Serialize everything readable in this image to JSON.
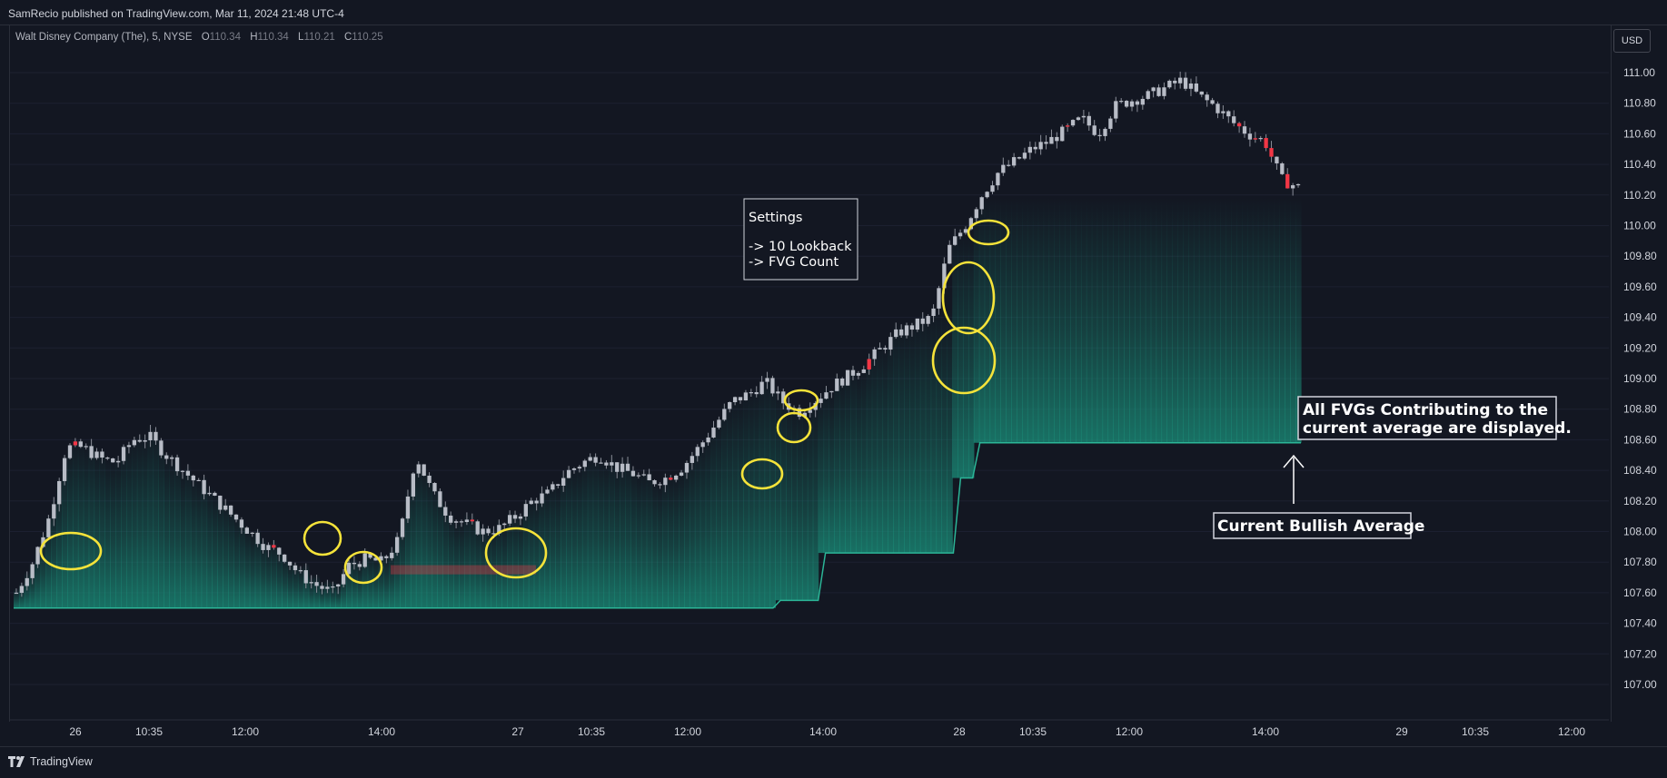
{
  "header": {
    "published": "SamRecio published on TradingView.com, Mar 11, 2024 21:48 UTC-4"
  },
  "legend": {
    "symbol": "Walt Disney Company (The), 5, NYSE",
    "o_label": "O",
    "o": "110.34",
    "h_label": "H",
    "h": "110.34",
    "l_label": "L",
    "l": "110.21",
    "c_label": "C",
    "c": "110.25"
  },
  "currency_button": "USD",
  "footer": {
    "brand": "TradingView"
  },
  "annotations": {
    "settings": [
      "Settings",
      "-> 10 Lookback",
      "-> FVG Count"
    ],
    "all_fvgs": [
      "All FVGs Contributing to the",
      "current average are displayed."
    ],
    "current_avg": "Current Bullish Average"
  },
  "colors": {
    "background": "#131722",
    "bull_fill": "#1a8f7a",
    "bull_line": "#2bb597",
    "bear": "#f23645",
    "candle": "#b8bcc6",
    "highlight": "#f5e33a"
  },
  "chart_data": {
    "type": "candlestick",
    "ylim": [
      106.85,
      111.28
    ],
    "y_ticks": [
      "111.00",
      "110.80",
      "110.60",
      "110.40",
      "110.20",
      "110.00",
      "109.80",
      "109.60",
      "109.40",
      "109.20",
      "109.00",
      "108.80",
      "108.60",
      "108.40",
      "108.20",
      "108.00",
      "107.80",
      "107.60",
      "107.40",
      "107.20",
      "107.00"
    ],
    "x_ticks": [
      "26",
      "10:35",
      "12:00",
      "14:00",
      "27",
      "10:35",
      "12:00",
      "14:00",
      "28",
      "10:35",
      "12:00",
      "14:00",
      "29",
      "10:35",
      "12:00"
    ],
    "price_path": [
      107.6,
      107.8,
      108.1,
      108.55,
      108.55,
      108.48,
      108.45,
      108.6,
      108.62,
      108.5,
      108.4,
      108.3,
      108.2,
      108.1,
      108.0,
      107.9,
      107.85,
      107.72,
      107.65,
      107.6,
      107.78,
      107.82,
      107.8,
      107.95,
      108.5,
      108.25,
      108.1,
      108.05,
      108.0,
      108.02,
      108.1,
      108.2,
      108.25,
      108.38,
      108.45,
      108.5,
      108.42,
      108.38,
      108.32,
      108.35,
      108.42,
      108.55,
      108.7,
      108.85,
      108.9,
      108.98,
      108.85,
      108.78,
      108.86,
      108.95,
      109.02,
      109.1,
      109.2,
      109.3,
      109.35,
      109.4,
      109.85,
      110.0,
      110.2,
      110.35,
      110.42,
      110.5,
      110.55,
      110.62,
      110.7,
      110.6,
      110.78,
      110.82,
      110.85,
      110.9,
      110.95,
      110.85,
      110.78,
      110.68,
      110.6,
      110.55,
      110.3,
      110.25
    ],
    "bull_average_steps": [
      {
        "x_end": 0.59,
        "value": 107.5
      },
      {
        "x_end": 0.625,
        "value": 107.55
      },
      {
        "x_end": 0.73,
        "value": 107.86
      },
      {
        "x_end": 0.745,
        "value": 108.35
      },
      {
        "x_end": 1.0,
        "value": 108.58
      }
    ],
    "current_bullish_average": 108.58
  }
}
